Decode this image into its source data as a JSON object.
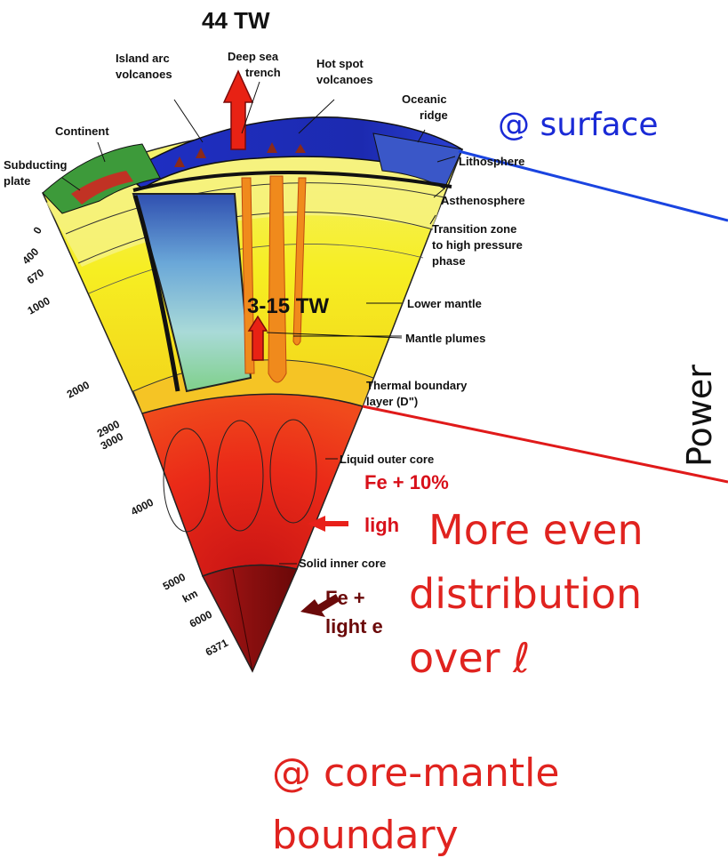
{
  "diagram": {
    "surface_flux": "44 TW",
    "cmb_flux": "3-15 TW",
    "labels": {
      "island_arc": [
        "Island arc",
        "volcanoes"
      ],
      "trench": [
        "Deep sea",
        "trench"
      ],
      "hotspot": [
        "Hot spot",
        "volcanoes"
      ],
      "ridge": [
        "Oceanic",
        "ridge"
      ],
      "continent": "Continent",
      "subducting": [
        "Subducting",
        "plate"
      ],
      "lithosphere": "Lithosphere",
      "asthenosphere": "Asthenosphere",
      "transition": [
        "Transition zone",
        "to high pressure",
        "phase"
      ],
      "lower_mantle": "Lower mantle",
      "plumes": "Mantle plumes",
      "thermal": [
        "Thermal boundary",
        "layer (D\")"
      ],
      "outer_core": "Liquid outer core",
      "outer_comp": [
        "Fe + 10%",
        "ligh"
      ],
      "inner_core": "Solid inner core",
      "inner_comp": [
        "Fe  +",
        "light e"
      ]
    },
    "depths": [
      "0",
      "400",
      "670",
      "1000",
      "2000",
      "2900",
      "3000",
      "4000",
      "5000",
      "km",
      "6000",
      "6371"
    ]
  },
  "annotations": {
    "surface": "@ surface",
    "distribution": [
      "More even",
      "distribution",
      "over ℓ"
    ],
    "cmb": [
      "@ core-mantle",
      "boundary"
    ],
    "power_axis": "Power"
  },
  "colors": {
    "ocean": "#1d2bb8",
    "mantle": "#f7f020",
    "outer_core": "#e8261a",
    "inner_core": "#8b1010",
    "surface_line": "#1a44e0",
    "cmb_line": "#e01a1a"
  }
}
